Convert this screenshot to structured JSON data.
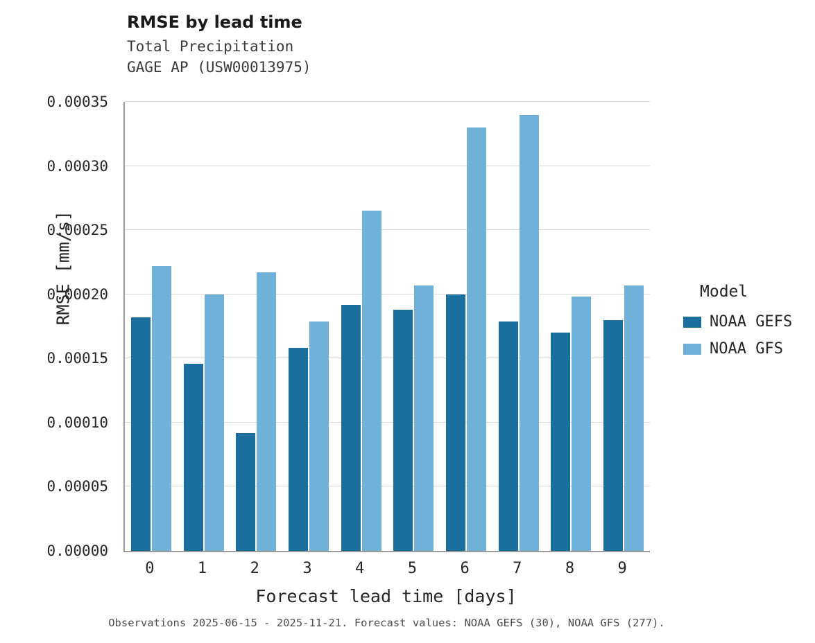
{
  "title": "RMSE by lead time",
  "subtitle_line1": "Total Precipitation",
  "subtitle_line2": "GAGE AP (USW00013975)",
  "caption": "Observations 2025-06-15 - 2025-11-21. Forecast values: NOAA GEFS (30), NOAA GFS (277).",
  "legend": {
    "title": "Model",
    "entries": [
      {
        "label": "NOAA GEFS",
        "color": "#1A6F9F"
      },
      {
        "label": "NOAA GFS",
        "color": "#6FB1D8"
      }
    ]
  },
  "colors": {
    "noaa_gefs": "#1A6F9F",
    "noaa_gfs": "#6FB1D8",
    "gridline": "#d9d9d9"
  },
  "chart_data": {
    "type": "bar",
    "title": "RMSE by lead time",
    "subtitle": "Total Precipitation — GAGE AP (USW00013975)",
    "xlabel": "Forecast lead time [days]",
    "ylabel": "RMSE [mm/s]",
    "x": [
      0,
      1,
      2,
      3,
      4,
      5,
      6,
      7,
      8,
      9
    ],
    "ylim": [
      0,
      0.00035
    ],
    "ytick_step": 5e-05,
    "grid": "horizontal",
    "legend_position": "right",
    "series": [
      {
        "name": "NOAA GEFS",
        "color": "#1A6F9F",
        "values": [
          0.000182,
          0.000146,
          9.2e-05,
          0.000158,
          0.000192,
          0.000188,
          0.0002,
          0.000179,
          0.00017,
          0.00018
        ]
      },
      {
        "name": "NOAA GFS",
        "color": "#6FB1D8",
        "values": [
          0.000222,
          0.0002,
          0.000217,
          0.000179,
          0.000265,
          0.000207,
          0.00033,
          0.00034,
          0.000198,
          0.000207
        ]
      }
    ]
  }
}
